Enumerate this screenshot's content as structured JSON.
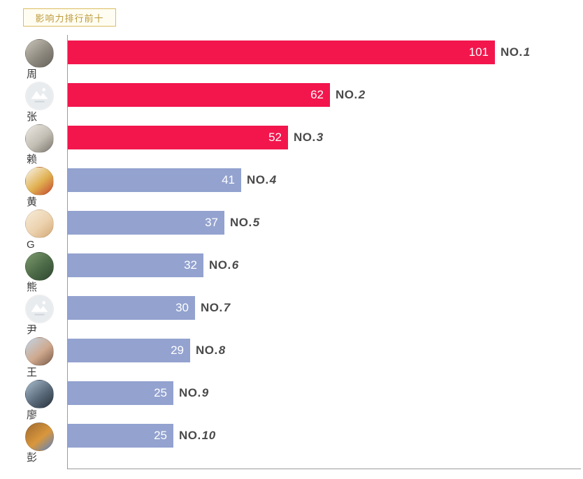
{
  "badge": {
    "label": "影响力排行前十",
    "border_color": "#dcbd62",
    "text_color": "#bd9a3b",
    "bg_color": "#fffdf2"
  },
  "chart_data": {
    "type": "bar",
    "orientation": "horizontal",
    "title": "影响力排行前十",
    "categories": [
      "周",
      "张",
      "赖",
      "黄",
      "G",
      "熊",
      "尹",
      "王",
      "廖",
      "彭"
    ],
    "values": [
      101,
      62,
      52,
      41,
      37,
      32,
      30,
      29,
      25,
      25
    ],
    "rank_labels": [
      "NO.1",
      "NO.2",
      "NO.3",
      "NO.4",
      "NO.5",
      "NO.6",
      "NO.7",
      "NO.8",
      "NO.9",
      "NO.10"
    ],
    "rank_prefix": "NO.",
    "rank_numbers": [
      "1",
      "2",
      "3",
      "4",
      "5",
      "6",
      "7",
      "8",
      "9",
      "10"
    ],
    "xlim": [
      0,
      121
    ],
    "grid": false,
    "legend": false,
    "bar_color_top3": "#f2164d",
    "bar_color_rest": "#93a2cf",
    "value_label_color": "#ffffff",
    "rank_label_color": "#4a4a4a",
    "axis_color": "#9b9b9b",
    "avatars": [
      {
        "name": "avatar-zhou",
        "type": "photo",
        "colors": [
          "#c9c4b8",
          "#8e897f",
          "#66615a"
        ]
      },
      {
        "name": "avatar-zhang",
        "type": "placeholder",
        "colors": [
          "#e9ecef"
        ]
      },
      {
        "name": "avatar-lai",
        "type": "photo",
        "colors": [
          "#ece9e3",
          "#c2beb4",
          "#7a756c"
        ]
      },
      {
        "name": "avatar-huang",
        "type": "photo",
        "colors": [
          "#f9f5ec",
          "#e0b050",
          "#c4452e"
        ]
      },
      {
        "name": "avatar-g",
        "type": "photo",
        "colors": [
          "#f7ecd9",
          "#ecd2ae",
          "#d3a876"
        ]
      },
      {
        "name": "avatar-xiong",
        "type": "photo",
        "colors": [
          "#7d9a6e",
          "#4c6a47",
          "#2f4730"
        ]
      },
      {
        "name": "avatar-yin",
        "type": "placeholder",
        "colors": [
          "#e9ecef"
        ]
      },
      {
        "name": "avatar-wang",
        "type": "photo",
        "colors": [
          "#c2d4e6",
          "#cfa98e",
          "#7a5a48"
        ]
      },
      {
        "name": "avatar-liao",
        "type": "photo",
        "colors": [
          "#a8bccd",
          "#5a6a7a",
          "#28323c"
        ]
      },
      {
        "name": "avatar-peng",
        "type": "photo",
        "colors": [
          "#a06a32",
          "#d9973c",
          "#5a82c4"
        ]
      }
    ]
  }
}
